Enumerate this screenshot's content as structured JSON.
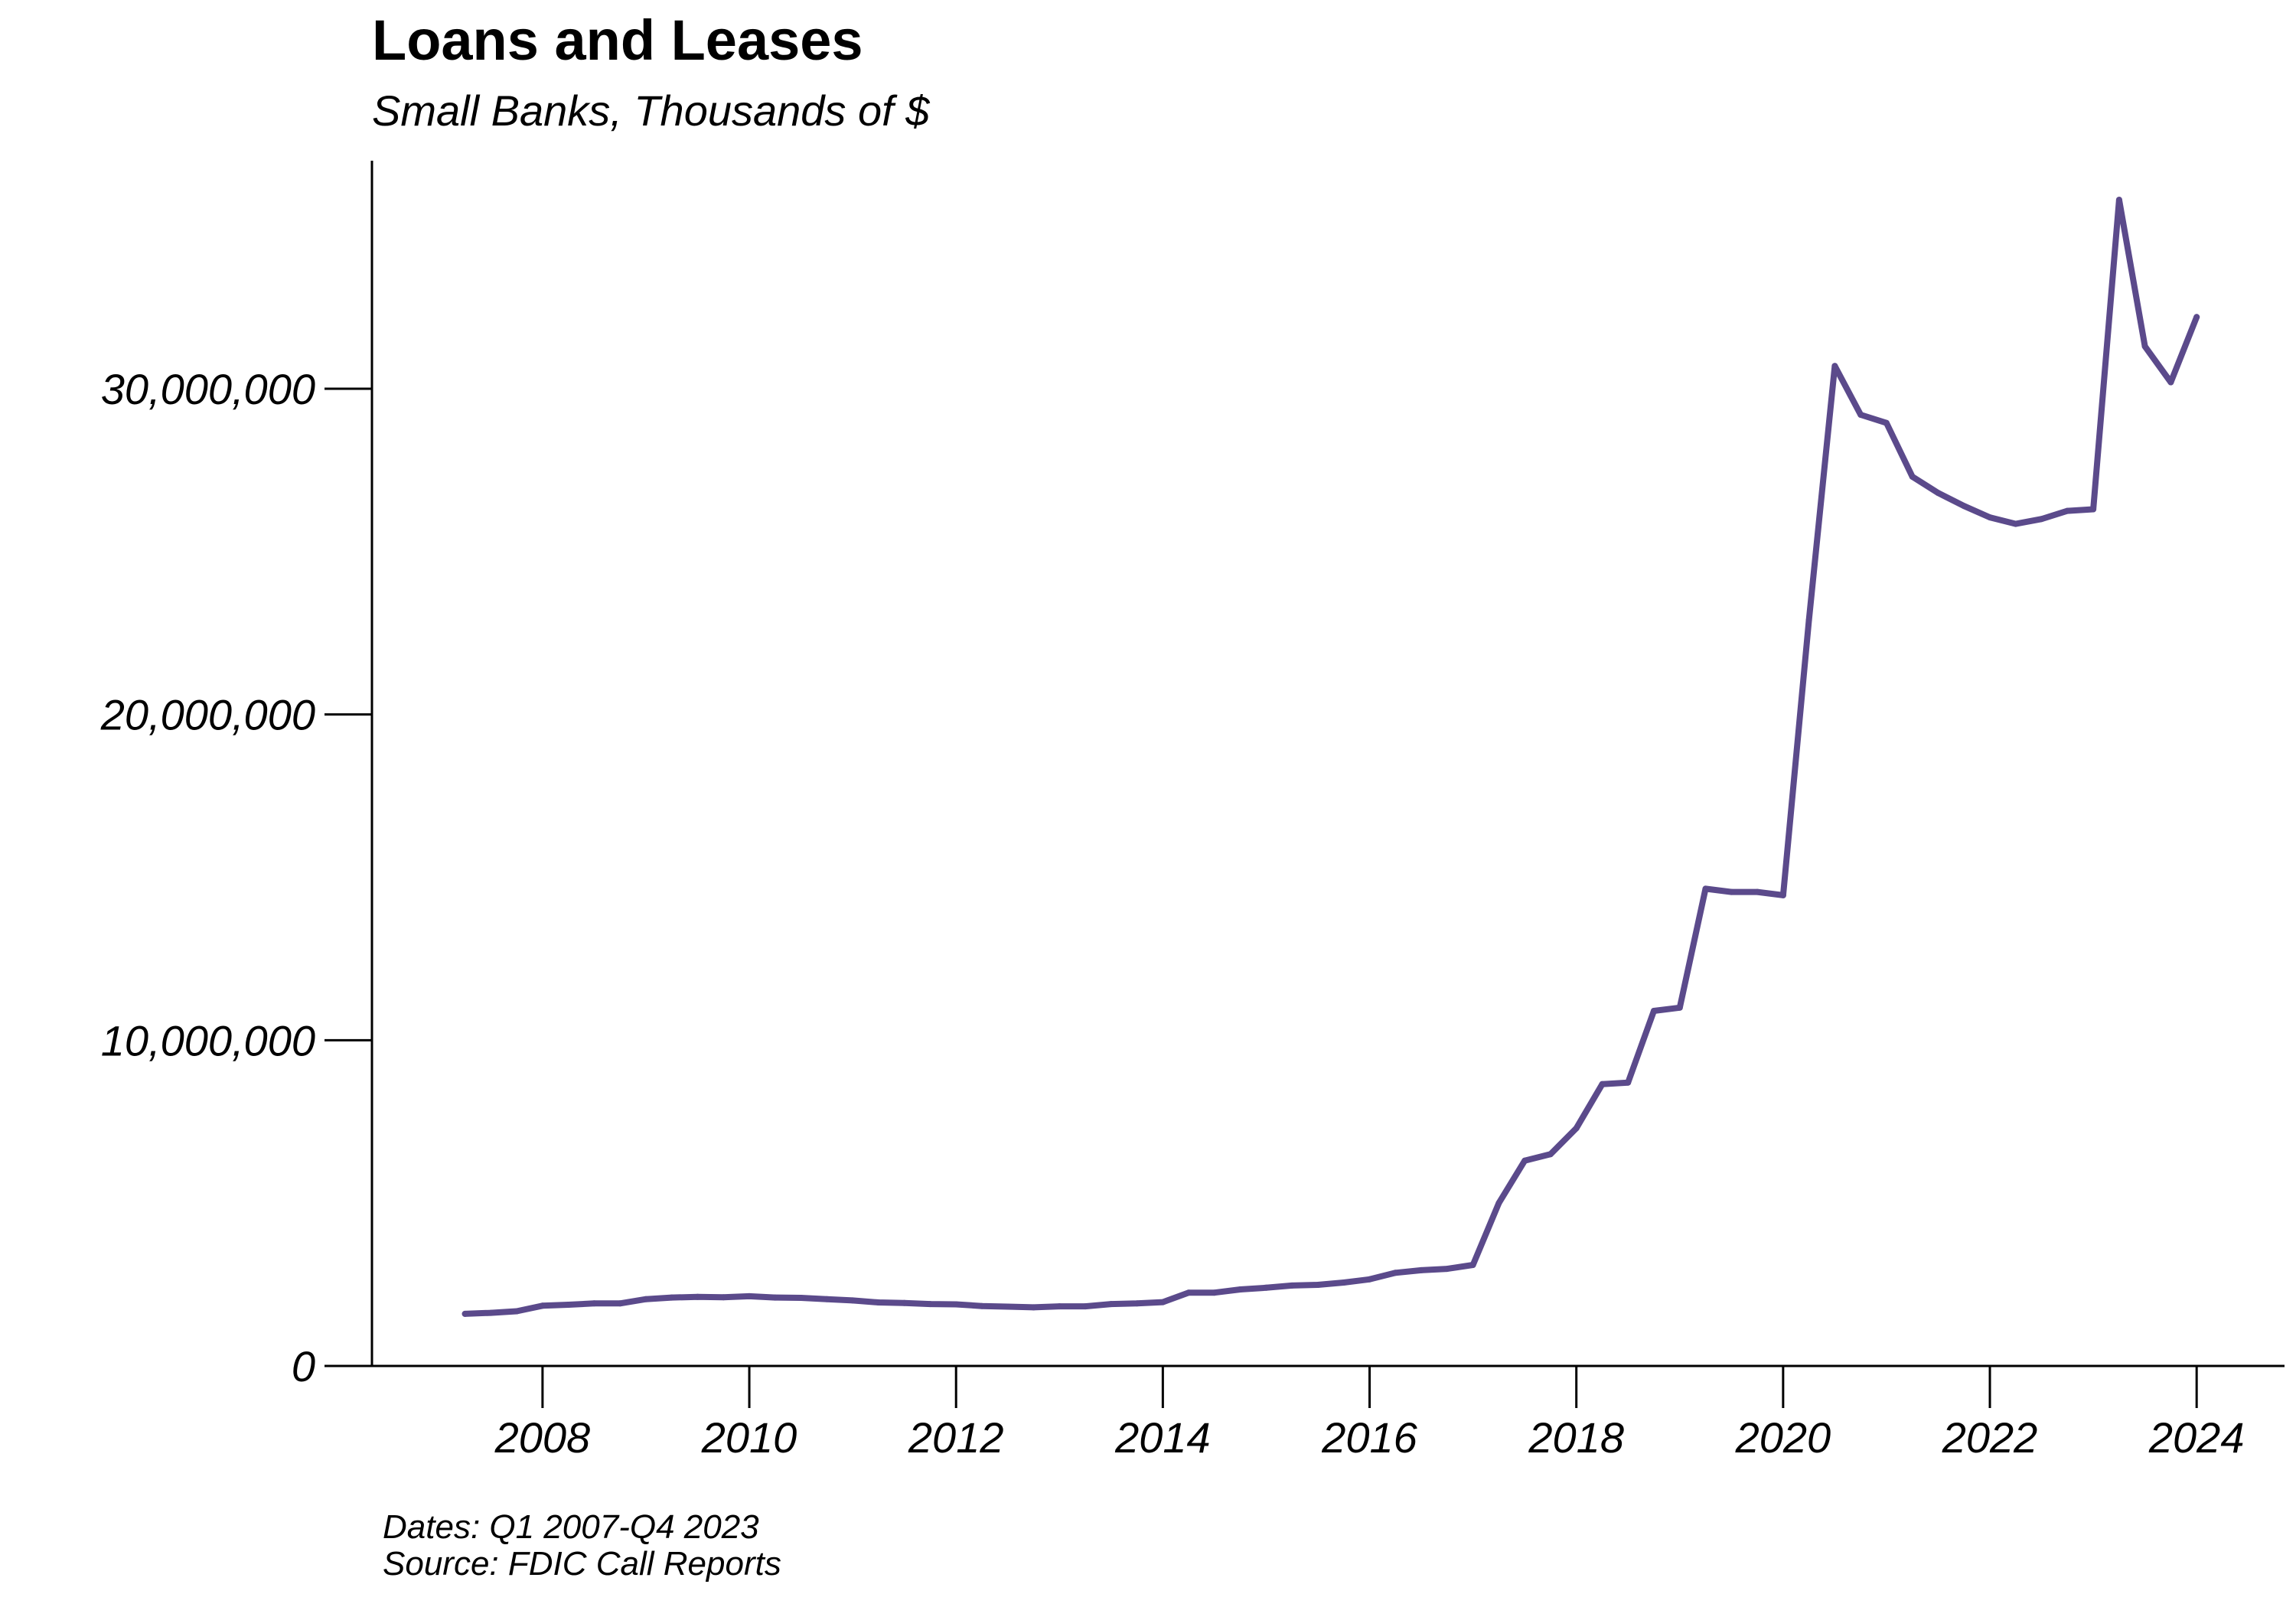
{
  "chart_data": {
    "type": "line",
    "title": "Loans and Leases",
    "subtitle": "Small Banks, Thousands of $",
    "xlabel": "",
    "ylabel": "",
    "xlim": [
      2006.35,
      2024.85
    ],
    "ylim": [
      0,
      37000000
    ],
    "x_ticks": [
      2008,
      2010,
      2012,
      2014,
      2016,
      2018,
      2020,
      2022,
      2024
    ],
    "y_ticks": [
      0,
      10000000,
      20000000,
      30000000
    ],
    "y_tick_labels": [
      "0",
      "10,000,000",
      "20,000,000",
      "30,000,000"
    ],
    "grid": false,
    "legend": "none",
    "line_color": "#5b4a8b",
    "caption_lines": [
      "Dates: Q1 2007-Q4 2023",
      "Source: FDIC Call Reports"
    ],
    "series": [
      {
        "x": [
          2007.25,
          2007.5,
          2007.75,
          2008.0,
          2008.25,
          2008.5,
          2008.75,
          2009.0,
          2009.25,
          2009.5,
          2009.75,
          2010.0,
          2010.25,
          2010.5,
          2010.75,
          2011.0,
          2011.25,
          2011.5,
          2011.75,
          2012.0,
          2012.25,
          2012.5,
          2012.75,
          2013.0,
          2013.25,
          2013.5,
          2013.75,
          2014.0,
          2014.25,
          2014.5,
          2014.75,
          2015.0,
          2015.25,
          2015.5,
          2015.75,
          2016.0,
          2016.25,
          2016.5,
          2016.75,
          2017.0,
          2017.25,
          2017.5,
          2017.75,
          2018.0,
          2018.25,
          2018.5,
          2018.75,
          2019.0,
          2019.25,
          2019.5,
          2019.75,
          2020.0,
          2020.25,
          2020.5,
          2020.75,
          2021.0,
          2021.25,
          2021.5,
          2021.75,
          2022.0,
          2022.25,
          2022.5,
          2022.75,
          2023.0,
          2023.25,
          2023.5,
          2023.75,
          2024.0
        ],
        "values": [
          1600000,
          1630000,
          1680000,
          1850000,
          1880000,
          1920000,
          1920000,
          2050000,
          2100000,
          2120000,
          2110000,
          2140000,
          2100000,
          2090000,
          2050000,
          2010000,
          1950000,
          1930000,
          1900000,
          1890000,
          1840000,
          1820000,
          1800000,
          1830000,
          1830000,
          1900000,
          1920000,
          1960000,
          2250000,
          2250000,
          2350000,
          2400000,
          2470000,
          2490000,
          2560000,
          2660000,
          2860000,
          2940000,
          2980000,
          3100000,
          5000000,
          6300000,
          6500000,
          7300000,
          8650000,
          8700000,
          10900000,
          11000000,
          14650000,
          14550000,
          14550000,
          14450000,
          22900000,
          30700000,
          29200000,
          28950000,
          27300000,
          26800000,
          26400000,
          26050000,
          25850000,
          26000000,
          26250000,
          26300000,
          35800000,
          31300000,
          30200000,
          32200000
        ]
      }
    ]
  }
}
